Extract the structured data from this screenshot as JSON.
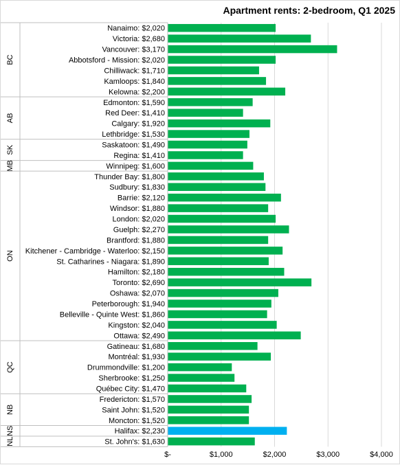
{
  "chart_data": {
    "type": "bar",
    "orientation": "horizontal",
    "title": "Apartment rents: 2-bedroom, Q1 2025",
    "xlim": [
      0,
      4000
    ],
    "x_ticks": [
      {
        "value": 0,
        "label": "$-"
      },
      {
        "value": 1000,
        "label": "$1,000"
      },
      {
        "value": 2000,
        "label": "$2,000"
      },
      {
        "value": 3000,
        "label": "$3,000"
      },
      {
        "value": 4000,
        "label": "$4,000"
      }
    ],
    "grid": true,
    "colors": {
      "default": "#00b050",
      "highlight": "#00b0f0"
    },
    "groups": [
      {
        "name": "BC",
        "items": [
          {
            "label": "Nanaimo: $2,020",
            "value": 2020
          },
          {
            "label": "Victoria: $2,680",
            "value": 2680
          },
          {
            "label": "Vancouver: $3,170",
            "value": 3170
          },
          {
            "label": "Abbotsford - Mission: $2,020",
            "value": 2020
          },
          {
            "label": "Chilliwack: $1,710",
            "value": 1710
          },
          {
            "label": "Kamloops: $1,840",
            "value": 1840
          },
          {
            "label": "Kelowna: $2,200",
            "value": 2200
          }
        ]
      },
      {
        "name": "AB",
        "items": [
          {
            "label": "Edmonton: $1,590",
            "value": 1590
          },
          {
            "label": "Red Deer: $1,410",
            "value": 1410
          },
          {
            "label": "Calgary: $1,920",
            "value": 1920
          },
          {
            "label": "Lethbridge: $1,530",
            "value": 1530
          }
        ]
      },
      {
        "name": "SK",
        "items": [
          {
            "label": "Saskatoon: $1,490",
            "value": 1490
          },
          {
            "label": "Regina: $1,410",
            "value": 1410
          }
        ]
      },
      {
        "name": "MB",
        "items": [
          {
            "label": "Winnipeg: $1,600",
            "value": 1600
          }
        ]
      },
      {
        "name": "ON",
        "items": [
          {
            "label": "Thunder Bay: $1,800",
            "value": 1800
          },
          {
            "label": "Sudbury: $1,830",
            "value": 1830
          },
          {
            "label": "Barrie: $2,120",
            "value": 2120
          },
          {
            "label": "Windsor: $1,880",
            "value": 1880
          },
          {
            "label": "London: $2,020",
            "value": 2020
          },
          {
            "label": "Guelph: $2,270",
            "value": 2270
          },
          {
            "label": "Brantford: $1,880",
            "value": 1880
          },
          {
            "label": "Kitchener - Cambridge - Waterloo: $2,150",
            "value": 2150
          },
          {
            "label": "St. Catharines - Niagara: $1,890",
            "value": 1890
          },
          {
            "label": "Hamilton: $2,180",
            "value": 2180
          },
          {
            "label": "Toronto: $2,690",
            "value": 2690
          },
          {
            "label": "Oshawa: $2,070",
            "value": 2070
          },
          {
            "label": "Peterborough: $1,940",
            "value": 1940
          },
          {
            "label": "Belleville - Quinte West: $1,860",
            "value": 1860
          },
          {
            "label": "Kingston: $2,040",
            "value": 2040
          },
          {
            "label": "Ottawa: $2,490",
            "value": 2490
          }
        ]
      },
      {
        "name": "QC",
        "items": [
          {
            "label": "Gatineau: $1,680",
            "value": 1680
          },
          {
            "label": "Montréal: $1,930",
            "value": 1930
          },
          {
            "label": "Drummondville: $1,200",
            "value": 1200
          },
          {
            "label": "Sherbrooke: $1,250",
            "value": 1250
          },
          {
            "label": "Québec City: $1,470",
            "value": 1470
          }
        ]
      },
      {
        "name": "NB",
        "items": [
          {
            "label": "Fredericton: $1,570",
            "value": 1570
          },
          {
            "label": "Saint John: $1,520",
            "value": 1520
          },
          {
            "label": "Moncton: $1,520",
            "value": 1520
          }
        ]
      },
      {
        "name": "NS",
        "items": [
          {
            "label": "Halifax: $2,230",
            "value": 2230,
            "highlight": true
          }
        ]
      },
      {
        "name": "NL",
        "items": [
          {
            "label": "St. John's: $1,630",
            "value": 1630
          }
        ]
      }
    ]
  }
}
